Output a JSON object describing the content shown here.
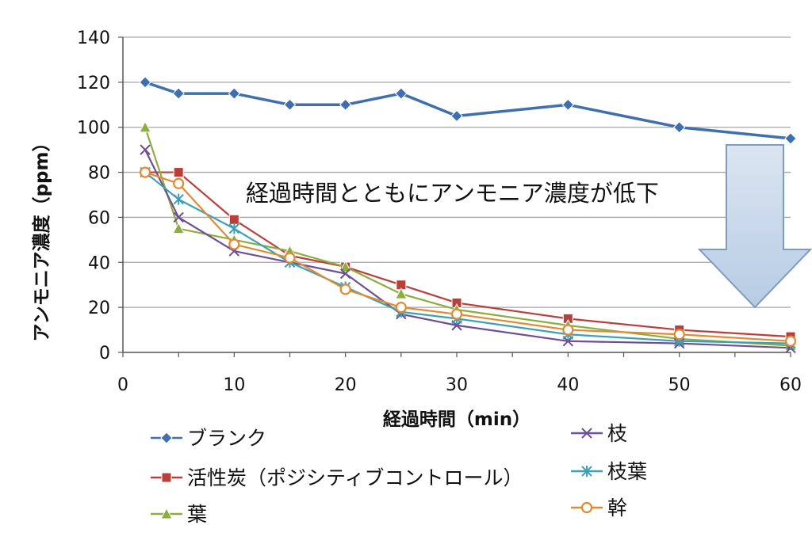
{
  "chart_data": {
    "type": "line",
    "xlabel": "経過時間（min）",
    "ylabel": "アンモニア濃度（ppm）",
    "xlim": [
      0,
      60
    ],
    "ylim": [
      0,
      140
    ],
    "xticks": [
      0,
      10,
      20,
      30,
      40,
      50,
      60
    ],
    "yticks": [
      0,
      20,
      40,
      60,
      80,
      100,
      120,
      140
    ],
    "grid": "horizontal",
    "legend_position": "bottom",
    "annotation": "経過時間とともにアンモニア濃度が低下",
    "x": [
      2,
      5,
      10,
      15,
      20,
      25,
      30,
      40,
      50,
      60
    ],
    "series": [
      {
        "name": "ブランク",
        "marker": "diamond",
        "color": "#3f6fae",
        "values": [
          120,
          115,
          115,
          110,
          110,
          115,
          105,
          110,
          100,
          95
        ]
      },
      {
        "name": "活性炭（ポジシティブコントロール）",
        "marker": "square",
        "color": "#b9403a",
        "values": [
          80,
          80,
          59,
          43,
          38,
          30,
          22,
          15,
          10,
          7
        ]
      },
      {
        "name": "葉",
        "marker": "triangle",
        "color": "#8cae3c",
        "values": [
          100,
          55,
          50,
          45,
          38,
          26,
          19,
          12,
          6,
          3
        ]
      },
      {
        "name": "枝",
        "marker": "x",
        "color": "#6e4f95",
        "values": [
          90,
          60,
          45,
          40,
          35,
          17,
          12,
          5,
          4,
          2
        ]
      },
      {
        "name": "枝葉",
        "marker": "star",
        "color": "#3ea0b5",
        "values": [
          80,
          68,
          55,
          40,
          29,
          18,
          15,
          8,
          5,
          4
        ]
      },
      {
        "name": "幹",
        "marker": "circle",
        "color": "#e28a32",
        "values": [
          80,
          75,
          48,
          42,
          28,
          20,
          17,
          10,
          8,
          5
        ]
      }
    ]
  },
  "colors": {
    "grid": "#a6a6a6",
    "axis": "#555555",
    "arrow_fill_top": "#dbe5f1",
    "arrow_fill_bottom": "#b7cce4",
    "arrow_stroke": "#7f9bbd"
  }
}
